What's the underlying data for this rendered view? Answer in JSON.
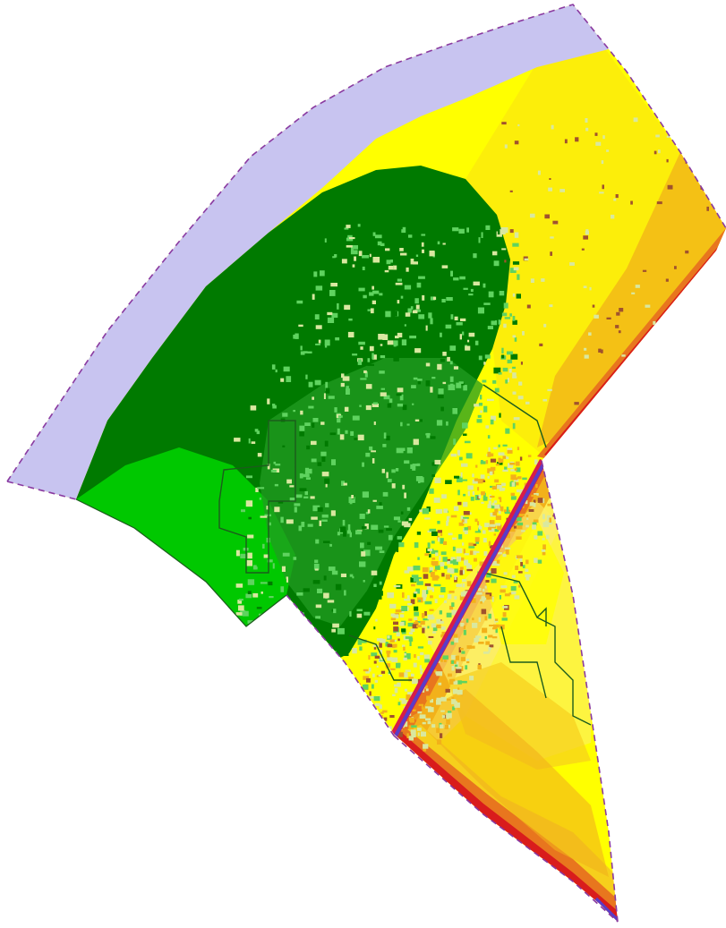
{
  "map": {
    "background": "#ffffff",
    "colors": {
      "water": "#c8c4f0",
      "high_yellow": "#ffff00",
      "yellow_light": "#fcec6a",
      "yellow_gold": "#f6cf1c",
      "orange_light": "#f2b11a",
      "orange": "#e8761e",
      "red": "#d91c1c",
      "dark_green": "#007a00",
      "mid_green": "#229c22",
      "bright_green": "#00c800",
      "light_green_speckle": "#5fd35f",
      "pale_speckle": "#d9e8a0",
      "brown_speckle": "#a0522d",
      "road_blue": "#5a3cc8",
      "road_red": "#d81c48",
      "outline_dark_green": "#1c5c1c",
      "boundary_dashed": "#8a3aa0"
    },
    "layers": [
      {
        "name": "water-zone"
      },
      {
        "name": "yellow-zone"
      },
      {
        "name": "gradient-bands"
      },
      {
        "name": "dark-green-zone"
      },
      {
        "name": "bright-green-zone"
      },
      {
        "name": "speckle-zone"
      },
      {
        "name": "road"
      },
      {
        "name": "outline-parcels"
      },
      {
        "name": "dashed-boundary"
      }
    ]
  }
}
